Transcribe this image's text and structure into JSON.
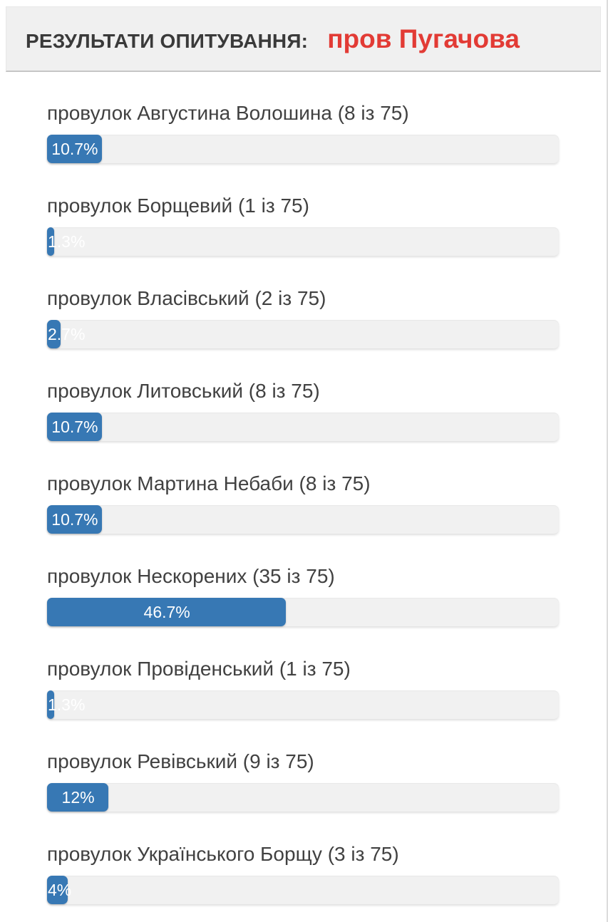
{
  "header": {
    "results_label": "РЕЗУЛЬТАТИ ОПИТУВАННЯ:",
    "question": "пров Пугачова"
  },
  "colors": {
    "accent_blue": "#3778b4",
    "title_red": "#e23b35",
    "header_bg": "#f0f0f0",
    "track_bg": "#f1f1f1"
  },
  "results": [
    {
      "label": "провулок Августина Волошина (8 із 75)",
      "votes": 8,
      "percent": 10.7,
      "percent_label": "10.7%"
    },
    {
      "label": "провулок Борщевий (1 із 75)",
      "votes": 1,
      "percent": 1.3,
      "percent_label": "1.3%"
    },
    {
      "label": "провулок Власівський (2 із 75)",
      "votes": 2,
      "percent": 2.7,
      "percent_label": "2.7%"
    },
    {
      "label": "провулок Литовський (8 із 75)",
      "votes": 8,
      "percent": 10.7,
      "percent_label": "10.7%"
    },
    {
      "label": "провулок Мартина Небаби (8 із 75)",
      "votes": 8,
      "percent": 10.7,
      "percent_label": "10.7%"
    },
    {
      "label": "провулок Нескорених (35 із 75)",
      "votes": 35,
      "percent": 46.7,
      "percent_label": "46.7%"
    },
    {
      "label": "провулок Провіденський (1 із 75)",
      "votes": 1,
      "percent": 1.3,
      "percent_label": "1.3%"
    },
    {
      "label": "провулок Ревівський (9 із 75)",
      "votes": 9,
      "percent": 12,
      "percent_label": "12%"
    },
    {
      "label": "провулок Українського Борщу (3 із 75)",
      "votes": 3,
      "percent": 4,
      "percent_label": "4%"
    }
  ],
  "chart_data": {
    "type": "bar",
    "title": "РЕЗУЛЬТАТИ ОПИТУВАННЯ: пров Пугачова",
    "total_votes": 75,
    "categories": [
      "провулок Августина Волошина",
      "провулок Борщевий",
      "провулок Власівський",
      "провулок Литовський",
      "провулок Мартина Небаби",
      "провулок Нескорених",
      "провулок Провіденський",
      "провулок Ревівський",
      "провулок Українського Борщу"
    ],
    "votes": [
      8,
      1,
      2,
      8,
      8,
      35,
      1,
      9,
      3
    ],
    "values": [
      10.7,
      1.3,
      2.7,
      10.7,
      10.7,
      46.7,
      1.3,
      12,
      4
    ],
    "value_unit": "%",
    "xlim": [
      0,
      100
    ],
    "orientation": "horizontal",
    "bar_color": "#3778b4"
  }
}
